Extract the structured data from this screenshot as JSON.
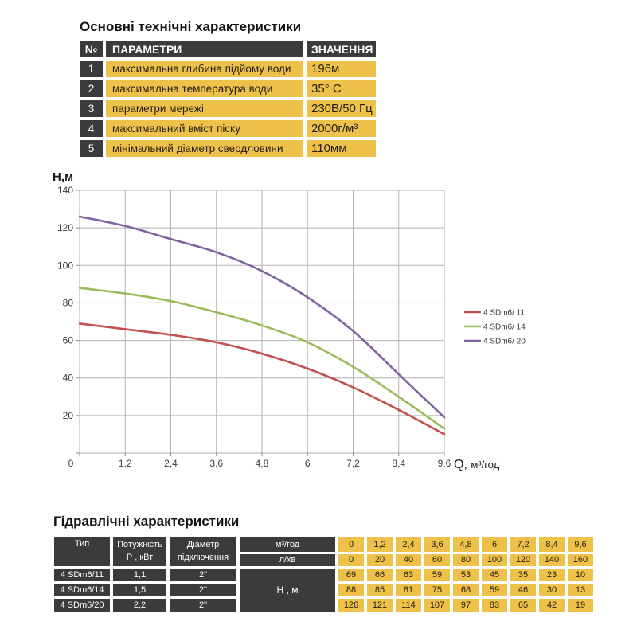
{
  "colors": {
    "dark": "#3B3B3A",
    "yellow": "#EEC14A",
    "grid": "#B3B2B0",
    "tick": "#8A8A8A",
    "red": "#C0504D",
    "green": "#9BBB59",
    "purple": "#8064A2"
  },
  "section1": {
    "title": "Основні технічні характеристики",
    "table": {
      "headers": {
        "num": "№",
        "param": "ПАРАМЕТРИ",
        "value": "ЗНАЧЕННЯ"
      },
      "rows": [
        {
          "num": "1",
          "param": "максимальна глибина підйому води",
          "value": "196м"
        },
        {
          "num": "2",
          "param": "максимальна температура води",
          "value": "35° С"
        },
        {
          "num": "3",
          "param": "параметри мережі",
          "value": "230В/50 Гц"
        },
        {
          "num": "4",
          "param": "максимальний вміст піску",
          "value": "2000г/м³"
        },
        {
          "num": "5",
          "param": "мінімальний діаметр свердловини",
          "value": "110мм"
        }
      ]
    }
  },
  "chart_data": {
    "type": "line",
    "title": "",
    "ylabel": "H,м",
    "xlabel": "Q,  м³/год",
    "xlabel_prefix": "Q,",
    "xlabel_unit": "м³/год",
    "x": [
      0,
      1.2,
      2.4,
      3.6,
      4.8,
      6,
      7.2,
      8.4,
      9.6
    ],
    "x_tick_labels": [
      "0",
      "1,2",
      "2,4",
      "3,6",
      "4,8",
      "6",
      "7,2",
      "8,4",
      "9,6"
    ],
    "ylim": [
      0,
      140
    ],
    "y_ticks": [
      0,
      20,
      40,
      60,
      80,
      100,
      120,
      140
    ],
    "grid": true,
    "legend_position": "right",
    "series": [
      {
        "name": "4 SDm6/ 11",
        "color": "#C0504D",
        "values": [
          69,
          66,
          63,
          59,
          53,
          45,
          35,
          23,
          10
        ]
      },
      {
        "name": "4 SDm6/ 14",
        "color": "#9BBB59",
        "values": [
          88,
          85,
          81,
          75,
          68,
          59,
          46,
          30,
          13
        ]
      },
      {
        "name": "4 SDm6/ 20",
        "color": "#8064A2",
        "values": [
          126,
          121,
          114,
          107,
          97,
          83,
          65,
          42,
          19
        ]
      }
    ]
  },
  "section2": {
    "title": "Гідравлічні характеристики",
    "table": {
      "col_headers": {
        "type": "Тип",
        "power_line1": "Потужність",
        "power_line2": "Р , кВт",
        "diameter_line1": "Діаметр",
        "diameter_line2": "підключення",
        "flow_m3": "м³/год",
        "flow_lmin": "л/хв",
        "head": "Н , м"
      },
      "flow_m3_values": [
        "0",
        "1,2",
        "2,4",
        "3,6",
        "4,8",
        "6",
        "7,2",
        "8,4",
        "9,6"
      ],
      "flow_lmin_values": [
        "0",
        "20",
        "40",
        "60",
        "80",
        "100",
        "120",
        "140",
        "160"
      ],
      "rows": [
        {
          "type": "4 SDm6/11",
          "power": "1,1",
          "diameter": "2\"",
          "head_values": [
            "69",
            "66",
            "63",
            "59",
            "53",
            "45",
            "35",
            "23",
            "10"
          ]
        },
        {
          "type": "4 SDm6/14",
          "power": "1,5",
          "diameter": "2\"",
          "head_values": [
            "88",
            "85",
            "81",
            "75",
            "68",
            "59",
            "46",
            "30",
            "13"
          ]
        },
        {
          "type": "4 SDm6/20",
          "power": "2,2",
          "diameter": "2\"",
          "head_values": [
            "126",
            "121",
            "114",
            "107",
            "97",
            "83",
            "65",
            "42",
            "19"
          ]
        }
      ]
    }
  }
}
